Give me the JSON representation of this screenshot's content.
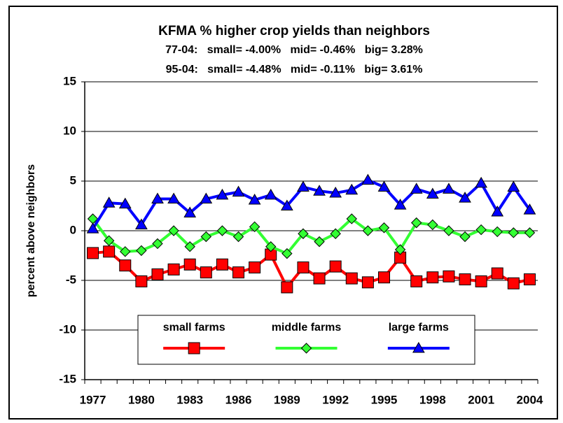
{
  "chart_data": {
    "type": "line",
    "title": "KFMA % higher crop yields than neighbors",
    "subtitle": [
      "77-04:   small= -4.00%   mid= -0.46%   big= 3.28%",
      "95-04:   small= -4.48%   mid= -0.11%   big= 3.61%"
    ],
    "ylabel": "percent above neighbors",
    "categories": [
      "1977",
      null,
      null,
      "1980",
      null,
      null,
      "1983",
      null,
      null,
      "1986",
      null,
      null,
      "1989",
      null,
      null,
      "1992",
      null,
      null,
      "1995",
      null,
      null,
      "1998",
      null,
      null,
      "2001",
      null,
      null,
      "2004"
    ],
    "series": [
      {
        "name": "small farms",
        "color": "#ff0000",
        "marker": "square",
        "values": [
          -2.25,
          -2.1,
          -3.5,
          -5.1,
          -4.4,
          -3.9,
          -3.4,
          -4.2,
          -3.4,
          -4.2,
          -3.7,
          -2.4,
          -5.7,
          -3.7,
          -4.8,
          -3.6,
          -4.8,
          -5.2,
          -4.7,
          -2.7,
          -5.1,
          -4.7,
          -4.6,
          -4.9,
          -5.1,
          -4.3,
          -5.3,
          -4.9
        ]
      },
      {
        "name": "middle farms",
        "color": "#33ff33",
        "marker": "diamond",
        "values": [
          1.2,
          -1.0,
          -2.1,
          -2.0,
          -1.3,
          0.0,
          -1.6,
          -0.6,
          0.0,
          -0.6,
          0.4,
          -1.6,
          -2.3,
          -0.3,
          -1.1,
          -0.3,
          1.2,
          0.0,
          0.3,
          -1.9,
          0.8,
          0.6,
          0.0,
          -0.6,
          0.1,
          -0.1,
          -0.2,
          -0.2
        ]
      },
      {
        "name": "large farms",
        "color": "#0000ff",
        "marker": "triangle",
        "values": [
          0.2,
          2.8,
          2.7,
          0.6,
          3.2,
          3.2,
          1.8,
          3.2,
          3.6,
          3.9,
          3.1,
          3.6,
          2.5,
          4.4,
          4.0,
          3.8,
          4.1,
          5.1,
          4.4,
          2.6,
          4.2,
          3.7,
          4.2,
          3.3,
          4.8,
          1.9,
          4.4,
          2.1
        ]
      }
    ],
    "ylim": [
      -15,
      15
    ],
    "yticks": [
      -15,
      -10,
      -5,
      0,
      5,
      10,
      15
    ],
    "grid": true,
    "legend": "lower center"
  }
}
